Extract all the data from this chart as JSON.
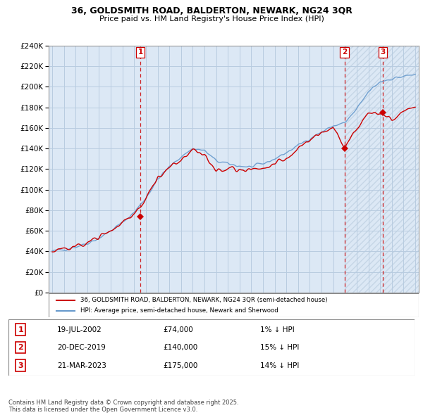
{
  "title_line1": "36, GOLDSMITH ROAD, BALDERTON, NEWARK, NG24 3QR",
  "title_line2": "Price paid vs. HM Land Registry's House Price Index (HPI)",
  "red_label": "36, GOLDSMITH ROAD, BALDERTON, NEWARK, NG24 3QR (semi-detached house)",
  "blue_label": "HPI: Average price, semi-detached house, Newark and Sherwood",
  "footnote": "Contains HM Land Registry data © Crown copyright and database right 2025.\nThis data is licensed under the Open Government Licence v3.0.",
  "sale_points": [
    {
      "num": 1,
      "date": "19-JUL-2002",
      "price": 74000,
      "label": "1% ↓ HPI",
      "x_year": 2002.54
    },
    {
      "num": 2,
      "date": "20-DEC-2019",
      "price": 140000,
      "label": "15% ↓ HPI",
      "x_year": 2019.96
    },
    {
      "num": 3,
      "date": "21-MAR-2023",
      "price": 175000,
      "label": "14% ↓ HPI",
      "x_year": 2023.22
    }
  ],
  "ylim": [
    0,
    240000
  ],
  "xlim_start": 1994.7,
  "xlim_end": 2026.3,
  "ytick_step": 20000,
  "background_color": "#dce8f5",
  "grid_color": "#b8cce0",
  "red_color": "#cc0000",
  "blue_color": "#6699cc",
  "stripe_start": 2019.96,
  "hpi_anchors_x": [
    1995,
    1996,
    1997,
    1998,
    1999,
    2000,
    2001,
    2002,
    2003,
    2004,
    2005,
    2006,
    2007,
    2008,
    2009,
    2010,
    2011,
    2012,
    2013,
    2014,
    2015,
    2016,
    2017,
    2018,
    2019,
    2020,
    2021,
    2022,
    2023,
    2024,
    2025,
    2026
  ],
  "hpi_anchors_y": [
    40000,
    42000,
    44500,
    48000,
    53000,
    60000,
    68000,
    78000,
    92000,
    110000,
    122000,
    132000,
    140000,
    138000,
    128000,
    125000,
    123000,
    122000,
    125000,
    130000,
    136000,
    143000,
    150000,
    156000,
    162000,
    165000,
    178000,
    195000,
    205000,
    208000,
    210000,
    212000
  ],
  "prop_anchors_x": [
    1995,
    1996,
    1997,
    1998,
    1999,
    2000,
    2001,
    2002,
    2003,
    2004,
    2005,
    2006,
    2007,
    2008,
    2009,
    2010,
    2011,
    2012,
    2013,
    2014,
    2015,
    2016,
    2017,
    2018,
    2019,
    2020,
    2021,
    2022,
    2023,
    2024,
    2025,
    2026
  ],
  "prop_anchors_y": [
    40000,
    42000,
    44500,
    48000,
    53000,
    60000,
    68000,
    76000,
    90000,
    112000,
    122000,
    128000,
    140000,
    135000,
    118000,
    120000,
    120000,
    118000,
    122000,
    126000,
    130000,
    140000,
    148000,
    155000,
    160000,
    140000,
    160000,
    175000,
    173000,
    168000,
    175000,
    180000
  ]
}
